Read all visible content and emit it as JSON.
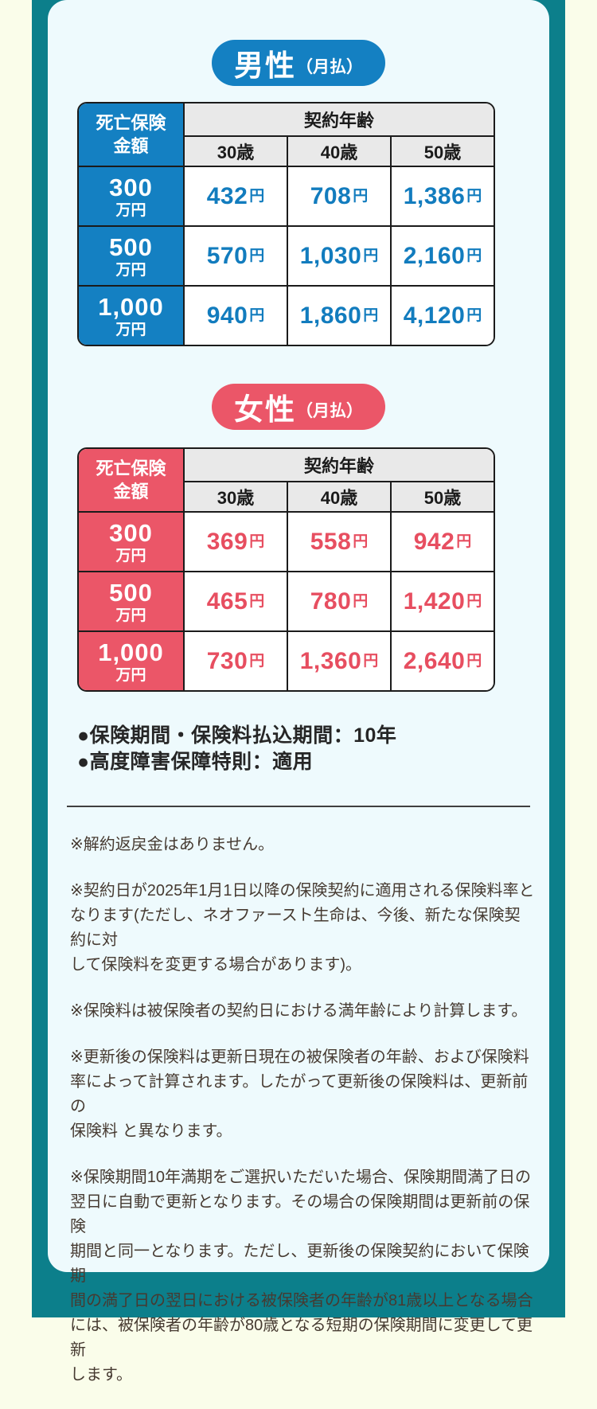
{
  "male_section": {
    "pill_label": "男性",
    "pill_sub": "（月払）"
  },
  "female_section": {
    "pill_label": "女性",
    "pill_sub": "（月払）"
  },
  "table_headers": {
    "corner": "死亡保険\n金額",
    "group": "契約年齢",
    "ages": [
      "30歳",
      "40歳",
      "50歳"
    ]
  },
  "yen": "円",
  "male_rows": [
    {
      "amount": "300",
      "unit": "万円",
      "values": [
        "432",
        "708",
        "1,386"
      ]
    },
    {
      "amount": "500",
      "unit": "万円",
      "values": [
        "570",
        "1,030",
        "2,160"
      ]
    },
    {
      "amount": "1,000",
      "unit": "万円",
      "values": [
        "940",
        "1,860",
        "4,120"
      ]
    }
  ],
  "female_rows": [
    {
      "amount": "300",
      "unit": "万円",
      "values": [
        "369",
        "558",
        "942"
      ]
    },
    {
      "amount": "500",
      "unit": "万円",
      "values": [
        "465",
        "780",
        "1,420"
      ]
    },
    {
      "amount": "1,000",
      "unit": "万円",
      "values": [
        "730",
        "1,360",
        "2,640"
      ]
    }
  ],
  "bullets": [
    "●保険期間・保険料払込期間：10年",
    "●高度障害保障特則：適用"
  ],
  "notes": [
    "※解約返戻金はありません。",
    "※契約日が2025年1月1日以降の保険契約に適用される保険料率と\nなります(ただし、ネオファースト生命は、今後、新たな保険契約に対\nして保険料を変更する場合があります)。",
    "※保険料は被保険者の契約日における満年齢により計算します。",
    "※更新後の保険料は更新日現在の被保険者の年齢、および保険料\n率によって計算されます。したがって更新後の保険料は、更新前の\n保険料 と異なります。",
    "※保険期間10年満期をご選択いただいた場合、保険期間満了日の\n翌日に自動で更新となります。その場合の保険期間は更新前の保険\n期間と同一となります。ただし、更新後の保険契約において保険期\n間の満了日の翌日における被保険者の年齢が81歳以上となる場合\nには、被保険者の年齢が80歳となる短期の保険期間に変更して更新\nします。"
  ],
  "colors": {
    "teal": "#0c7f8b",
    "cream": "#fafdea",
    "card_bg": "#eefafd",
    "male_bg": "#1480c2",
    "male_text": "#127cbe",
    "female_bg": "#eb5668",
    "female_text": "#e74e60"
  }
}
